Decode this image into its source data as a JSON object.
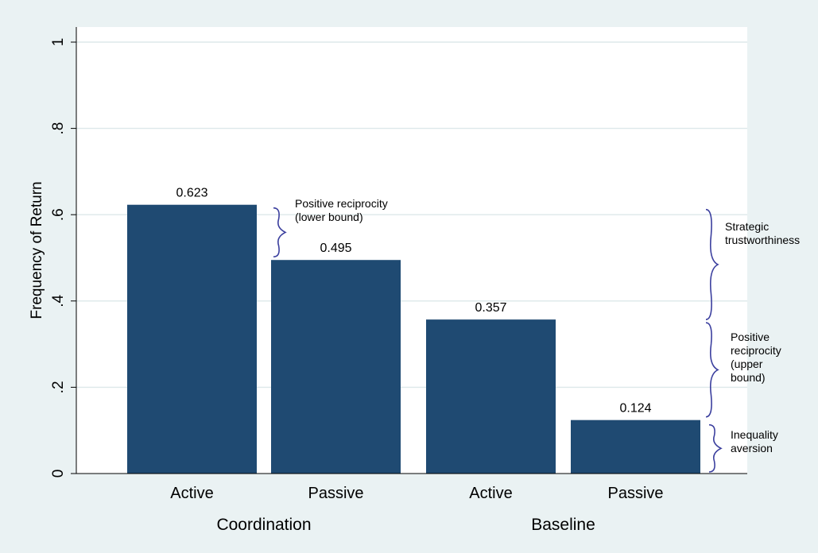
{
  "chart_data": {
    "type": "bar",
    "ylabel": "Frequency of Return",
    "ylim": [
      0,
      1
    ],
    "yticks": [
      {
        "value": 0,
        "label": "0"
      },
      {
        "value": 0.2,
        "label": ".2"
      },
      {
        "value": 0.4,
        "label": ".4"
      },
      {
        "value": 0.6,
        "label": ".6"
      },
      {
        "value": 0.8,
        "label": ".8"
      },
      {
        "value": 1,
        "label": "1"
      }
    ],
    "grid": true,
    "bar_color": "#1f4a72",
    "gridline_color": "#dde8ea",
    "categories": [
      "Active",
      "Passive",
      "Active",
      "Passive"
    ],
    "values": [
      0.623,
      0.495,
      0.357,
      0.124
    ],
    "data_labels": [
      "0.623",
      "0.495",
      "0.357",
      "0.124"
    ],
    "groups": [
      {
        "label": "Coordination",
        "bars": [
          0,
          1
        ]
      },
      {
        "label": "Baseline",
        "bars": [
          2,
          3
        ]
      }
    ],
    "annotations": [
      {
        "lines": [
          "Positive reciprocity",
          "(lower bound)"
        ],
        "from": 0.495,
        "to": 0.623
      },
      {
        "lines": [
          "Strategic",
          "trustworthiness"
        ],
        "from": 0.357,
        "to": 0.623
      },
      {
        "lines": [
          "Positive",
          "reciprocity",
          "(upper",
          "bound)"
        ],
        "from": 0.124,
        "to": 0.357
      },
      {
        "lines": [
          "Inequality",
          "aversion"
        ],
        "from": 0,
        "to": 0.124
      }
    ]
  }
}
